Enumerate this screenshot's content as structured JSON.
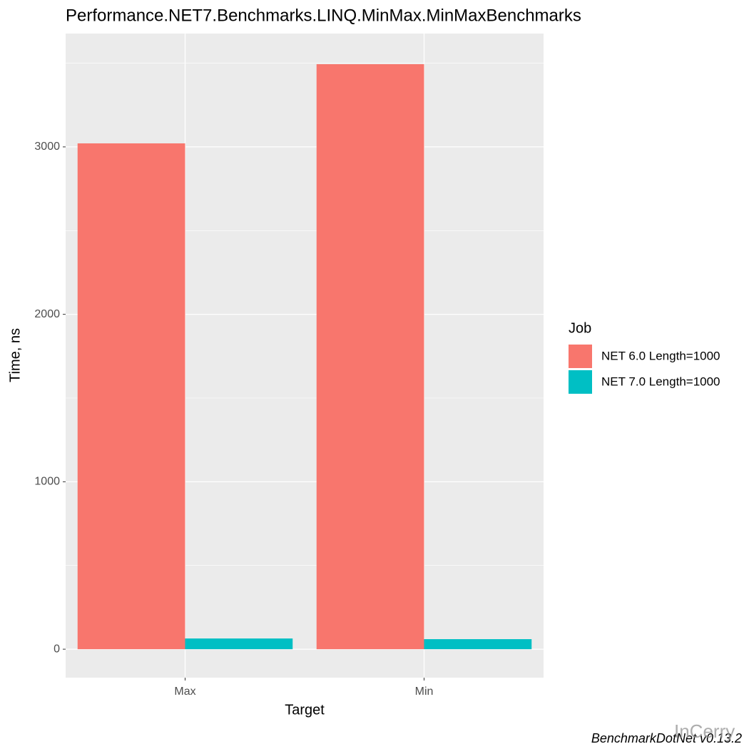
{
  "chart_data": {
    "type": "bar",
    "title": "Performance.NET7.Benchmarks.LINQ.MinMax.MinMaxBenchmarks",
    "x_label": "Target",
    "y_label": "Time, ns",
    "categories": [
      "Max",
      "Min"
    ],
    "series": [
      {
        "name": "NET 6.0 Length=1000",
        "color": "#f8766d",
        "values": [
          3021,
          3494
        ]
      },
      {
        "name": "NET 7.0 Length=1000",
        "color": "#00bfc4",
        "values": [
          64,
          60
        ]
      }
    ],
    "ylim": [
      -170,
      3677
    ],
    "yticks": [
      0,
      1000,
      2000,
      3000
    ],
    "grid": true,
    "legend_title": "Job",
    "legend_position": "right",
    "caption": "BenchmarkDotNet v0.13.2",
    "watermark": "InCerry"
  }
}
